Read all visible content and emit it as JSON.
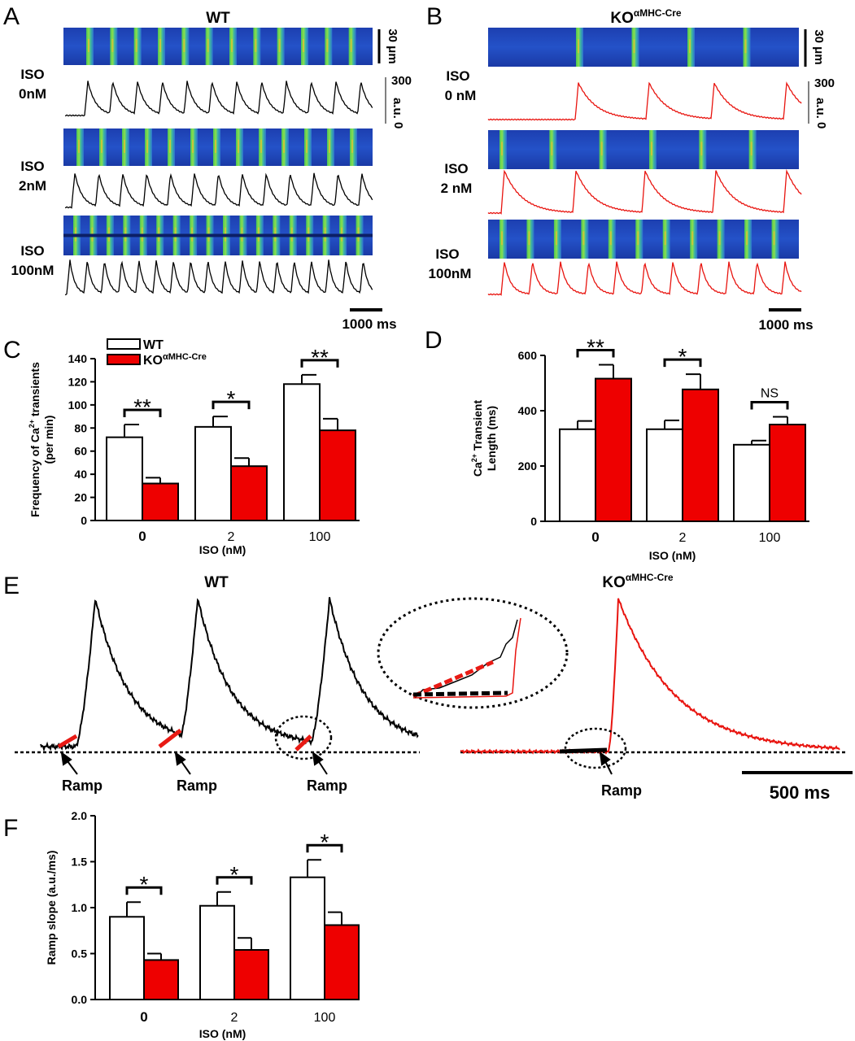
{
  "panels": {
    "A": {
      "letter": "A",
      "title": "WT",
      "rows": [
        {
          "label_top": "ISO",
          "label_bottom": "0nM"
        },
        {
          "label_top": "ISO",
          "label_bottom": "2nM"
        },
        {
          "label_top": "ISO",
          "label_bottom": "100nM"
        }
      ],
      "scale_um": "30 μm",
      "scale_au_value": "300",
      "scale_au_unit": "a.u.",
      "scale_au_zero": "0",
      "time_scale": "1000 ms"
    },
    "B": {
      "letter": "B",
      "title_main": "KO",
      "title_sup": "αMHC-Cre",
      "rows": [
        {
          "label_top": "ISO",
          "label_bottom": "0 nM"
        },
        {
          "label_top": "ISO",
          "label_bottom": "2 nM"
        },
        {
          "label_top": "ISO",
          "label_bottom": "100nM"
        }
      ],
      "scale_um": "30 μm",
      "scale_au_value": "300",
      "scale_au_unit": "a.u.",
      "scale_au_zero": "0",
      "time_scale": "1000 ms"
    },
    "C": {
      "letter": "C"
    },
    "D": {
      "letter": "D"
    },
    "E": {
      "letter": "E",
      "title_wt": "WT",
      "title_ko_main": "KO",
      "title_ko_sup": "αMHC-Cre",
      "ramp_label": "Ramp",
      "time_scale": "500 ms"
    },
    "F": {
      "letter": "F"
    }
  },
  "legend": {
    "wt": "WT",
    "ko_main": "KO",
    "ko_sup": "αMHC-Cre"
  },
  "colors": {
    "wt_fill": "#ffffff",
    "ko_fill": "#ee0000",
    "ko_trace": "#e8140f",
    "wt_trace": "#000000"
  },
  "chart_data": [
    {
      "id": "C",
      "type": "bar",
      "categories": [
        "0",
        "2",
        "100"
      ],
      "ylabel_line1_pre": "Frequency of Ca",
      "ylabel_line1_sup": "2+",
      "ylabel_line1_post": " transients",
      "ylabel_line2": "(per min)",
      "xlabel": "ISO (nM)",
      "ylim": [
        0,
        140
      ],
      "yticks": [
        "0",
        "20",
        "40",
        "60",
        "80",
        "100",
        "120",
        "140"
      ],
      "series": [
        {
          "name": "WT",
          "values": [
            72,
            81,
            118
          ],
          "errors": [
            11,
            9,
            8
          ]
        },
        {
          "name": "KOαMHC-Cre",
          "values": [
            32,
            47,
            78
          ],
          "errors": [
            5,
            7,
            10
          ]
        }
      ],
      "significance": [
        "**",
        "*",
        "**"
      ],
      "legend_position": "top-left"
    },
    {
      "id": "D",
      "type": "bar",
      "categories": [
        "0",
        "2",
        "100"
      ],
      "ylabel_line1_pre": "Ca",
      "ylabel_line1_sup": "2+",
      "ylabel_line1_post": " Transient",
      "ylabel_line2": "Length (ms)",
      "xlabel": "ISO (nM)",
      "ylim": [
        0,
        600
      ],
      "yticks": [
        "0",
        "200",
        "400",
        "600"
      ],
      "series": [
        {
          "name": "WT",
          "values": [
            333,
            333,
            277
          ],
          "errors": [
            30,
            32,
            15
          ]
        },
        {
          "name": "KOαMHC-Cre",
          "values": [
            516,
            477,
            350
          ],
          "errors": [
            50,
            55,
            28
          ]
        }
      ],
      "significance": [
        "**",
        "*",
        "NS"
      ]
    },
    {
      "id": "F",
      "type": "bar",
      "categories": [
        "0",
        "2",
        "100"
      ],
      "ylabel_line1_pre": "Ramp slope (a.u./ms)",
      "ylabel_line1_sup": "",
      "ylabel_line1_post": "",
      "ylabel_line2": "",
      "xlabel": "ISO (nM)",
      "ylim": [
        0,
        2.0
      ],
      "yticks": [
        "0.0",
        "0.5",
        "1.0",
        "1.5",
        "2.0"
      ],
      "series": [
        {
          "name": "WT",
          "values": [
            0.9,
            1.02,
            1.33
          ],
          "errors": [
            0.16,
            0.15,
            0.19
          ]
        },
        {
          "name": "KOαMHC-Cre",
          "values": [
            0.43,
            0.54,
            0.81
          ],
          "errors": [
            0.07,
            0.13,
            0.14
          ]
        }
      ],
      "significance": [
        "*",
        "*",
        "*"
      ]
    }
  ]
}
